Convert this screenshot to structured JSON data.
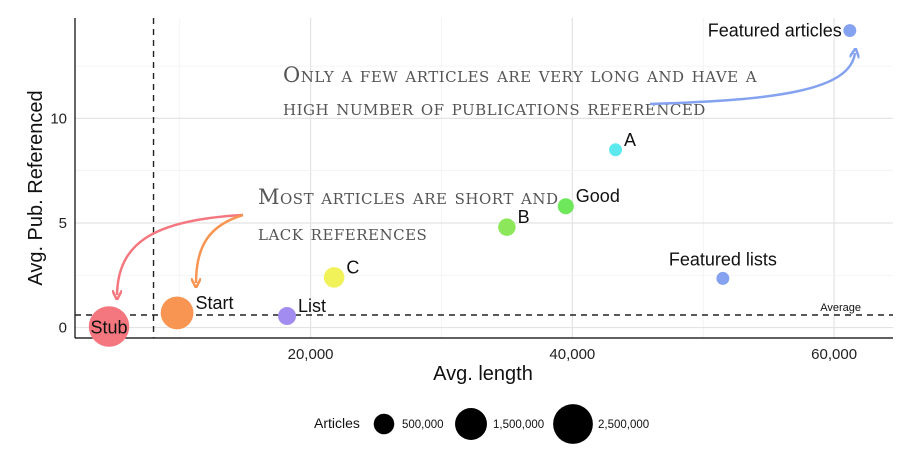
{
  "chart_data": {
    "type": "scatter",
    "xlabel": "Avg. length",
    "ylabel": "Avg. Pub. Referenced",
    "xlim": [
      2000,
      64500
    ],
    "ylim": [
      -0.5,
      14.8
    ],
    "x_ticks": [
      20000,
      40000,
      60000
    ],
    "x_tick_labels": [
      "20,000",
      "40,000",
      "60,000"
    ],
    "y_ticks": [
      0,
      5,
      10
    ],
    "y_tick_labels": [
      "0",
      "5",
      "10"
    ],
    "grid": true,
    "points": [
      {
        "label": "Stub",
        "x": 4600,
        "y": 0.05,
        "size": 2600000,
        "color": "#f4777f"
      },
      {
        "label": "Start",
        "x": 9800,
        "y": 0.7,
        "size": 1600000,
        "color": "#f89552"
      },
      {
        "label": "List",
        "x": 18200,
        "y": 0.55,
        "size": 350000,
        "color": "#a38cf0"
      },
      {
        "label": "C",
        "x": 21800,
        "y": 2.4,
        "size": 500000,
        "color": "#f1f25a"
      },
      {
        "label": "B",
        "x": 35000,
        "y": 4.8,
        "size": 320000,
        "color": "#8ce85a"
      },
      {
        "label": "Good",
        "x": 39500,
        "y": 5.8,
        "size": 250000,
        "color": "#6ee85a"
      },
      {
        "label": "A",
        "x": 43300,
        "y": 8.5,
        "size": 130000,
        "color": "#5ce8ec"
      },
      {
        "label": "Featured lists",
        "x": 51500,
        "y": 2.35,
        "size": 130000,
        "color": "#84a2f0"
      },
      {
        "label": "Featured articles",
        "x": 61200,
        "y": 14.2,
        "size": 130000,
        "color": "#84a2f0"
      }
    ],
    "reference_lines": {
      "vertical_x": 8000,
      "horizontal_y": 0.6,
      "horizontal_label": "Average"
    },
    "legend": {
      "title": "Articles",
      "entries": [
        {
          "label": "500,000",
          "size": 500000
        },
        {
          "label": "1,500,000",
          "size": 1500000
        },
        {
          "label": "2,500,000",
          "size": 2500000
        }
      ],
      "placement": "bottom"
    },
    "annotations": [
      {
        "lines": [
          "Only a few articles are very long and have a",
          "high number of publications referenced"
        ],
        "color": "#84a2f0"
      },
      {
        "lines": [
          "Most articles are short and",
          "lack references"
        ],
        "colors": [
          "#f4777f",
          "#f89552"
        ]
      }
    ]
  }
}
